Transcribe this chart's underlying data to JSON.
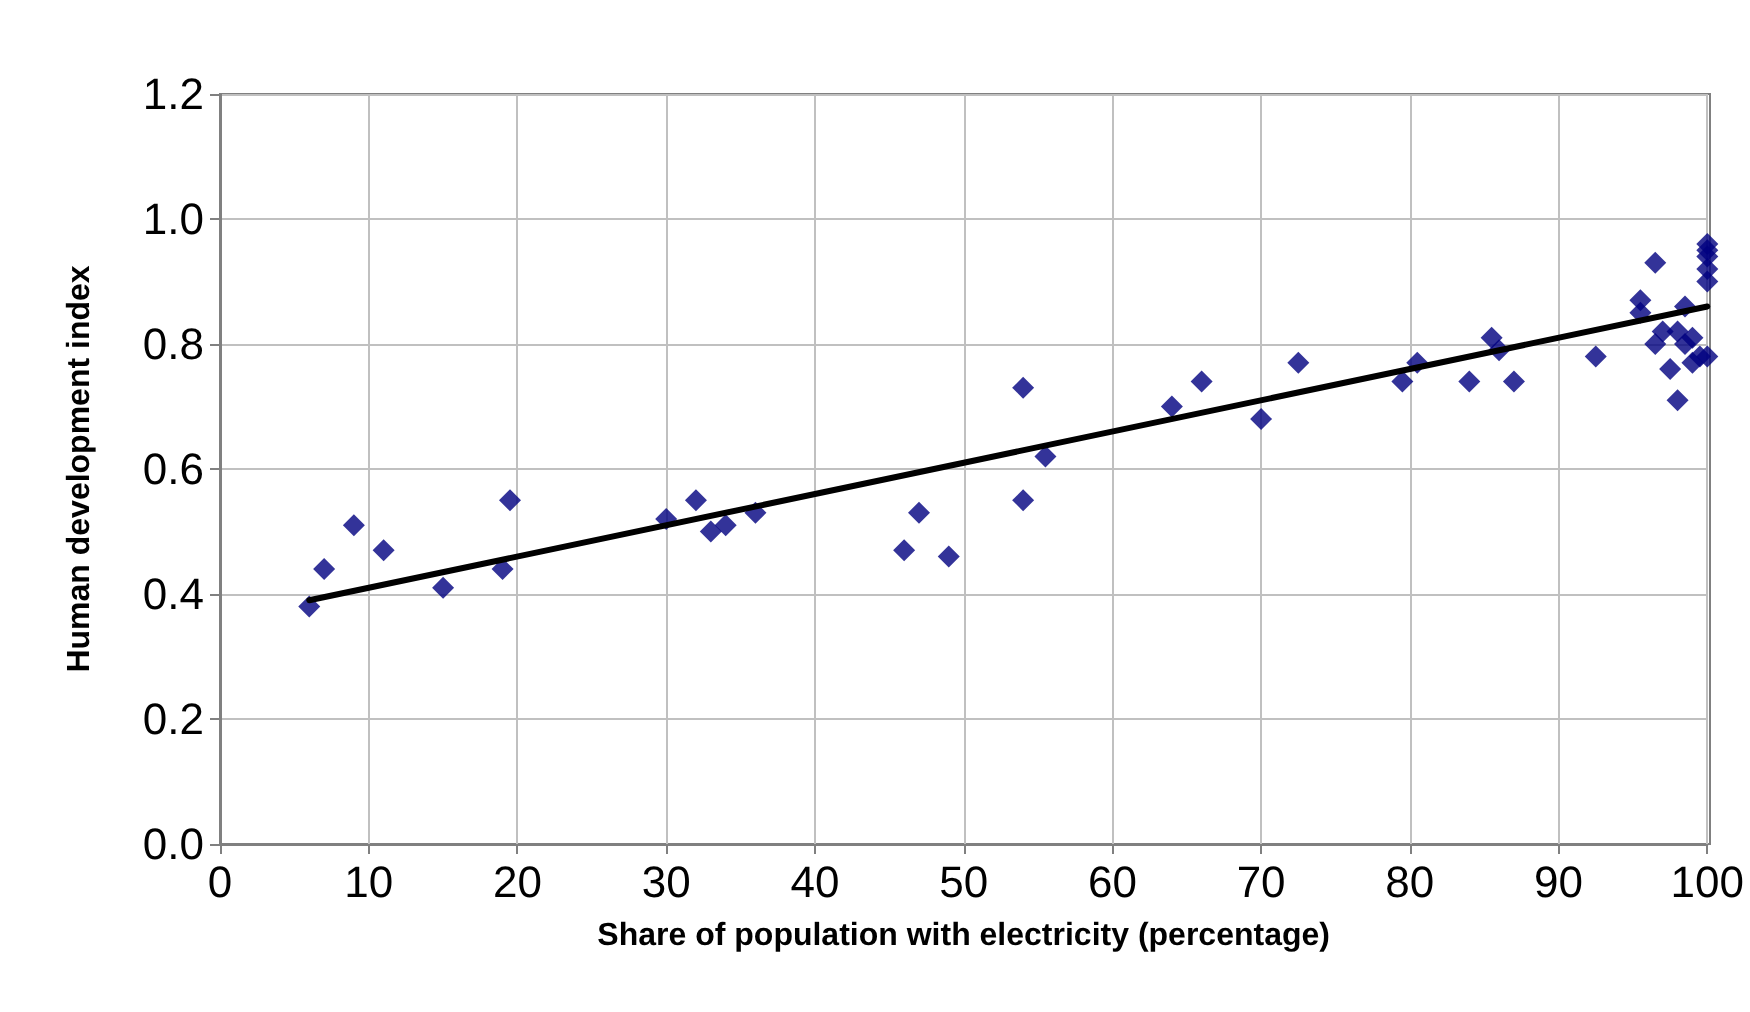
{
  "chart_data": {
    "type": "scatter",
    "xlabel": "Share of population with electricity (percentage)",
    "ylabel": "Human development index",
    "xlim": [
      0,
      100
    ],
    "xticks": [
      0,
      10,
      20,
      30,
      40,
      50,
      60,
      70,
      80,
      90,
      100
    ],
    "ylim": [
      0,
      1.2
    ],
    "yticks": [
      {
        "value": 0,
        "label": "0.0"
      },
      {
        "value": 0.2,
        "label": "0.2"
      },
      {
        "value": 0.4,
        "label": "0.4"
      },
      {
        "value": 0.6,
        "label": "0.6"
      },
      {
        "value": 0.8,
        "label": "0.8"
      },
      {
        "value": 1,
        "label": "1.0"
      },
      {
        "value": 1.2,
        "label": "1.2"
      }
    ],
    "grid": true,
    "marker": "diamond",
    "series": [
      {
        "color": "#000080",
        "x": [
          6,
          7,
          9,
          11,
          15,
          19,
          19.5,
          30,
          32,
          33,
          34,
          36,
          46,
          47,
          49,
          54,
          54,
          55.5,
          64,
          66,
          70,
          72.5,
          79.5,
          80.5,
          84,
          85.5,
          86,
          87,
          92.5,
          95.5,
          95.5,
          96.5,
          96.5,
          97,
          97.5,
          98,
          98,
          98.5,
          98.5,
          99,
          99,
          99.5,
          100,
          100,
          100,
          100,
          100,
          100
        ],
        "values": [
          0.38,
          0.44,
          0.51,
          0.47,
          0.41,
          0.44,
          0.55,
          0.52,
          0.55,
          0.5,
          0.51,
          0.53,
          0.47,
          0.53,
          0.46,
          0.73,
          0.55,
          0.62,
          0.7,
          0.74,
          0.68,
          0.77,
          0.74,
          0.77,
          0.74,
          0.81,
          0.79,
          0.74,
          0.78,
          0.87,
          0.85,
          0.93,
          0.8,
          0.82,
          0.76,
          0.82,
          0.71,
          0.86,
          0.8,
          0.77,
          0.81,
          0.78,
          0.96,
          0.95,
          0.94,
          0.92,
          0.9,
          0.78
        ]
      },
      {
        "type": "line",
        "color": "#000000",
        "line_style": "solid",
        "marker": "none",
        "x": [
          6,
          100
        ],
        "values": [
          0.39,
          0.86
        ]
      }
    ]
  }
}
